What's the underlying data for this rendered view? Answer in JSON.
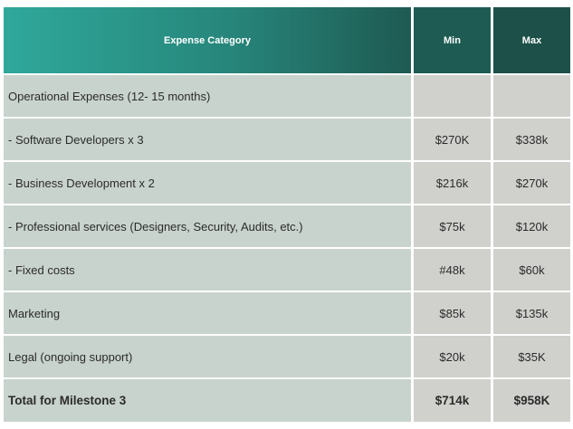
{
  "table": {
    "headers": [
      "Expense Category",
      "Min",
      "Max"
    ],
    "rows": [
      [
        "Operational Expenses (12- 15 months)",
        "",
        ""
      ],
      [
        "- Software Developers x 3",
        "$270K",
        "$338k"
      ],
      [
        "- Business Development x 2",
        "$216k",
        "$270k"
      ],
      [
        "- Professional services (Designers, Security, Audits, etc.)",
        "$75k",
        "$120k"
      ],
      [
        "- Fixed costs",
        "#48k",
        "$60k"
      ],
      [
        "Marketing",
        "$85k",
        "$135k"
      ],
      [
        "Legal (ongoing  support)",
        "$20k",
        "$35K"
      ]
    ],
    "total": [
      "Total for Milestone 3",
      "$714k",
      "$958K"
    ]
  },
  "colors": {
    "header_gradient_start": "#2fa89b",
    "header_gradient_end": "#1e5a52",
    "label_cell": "#c8d3cd",
    "value_cell": "#d0d0cd"
  }
}
